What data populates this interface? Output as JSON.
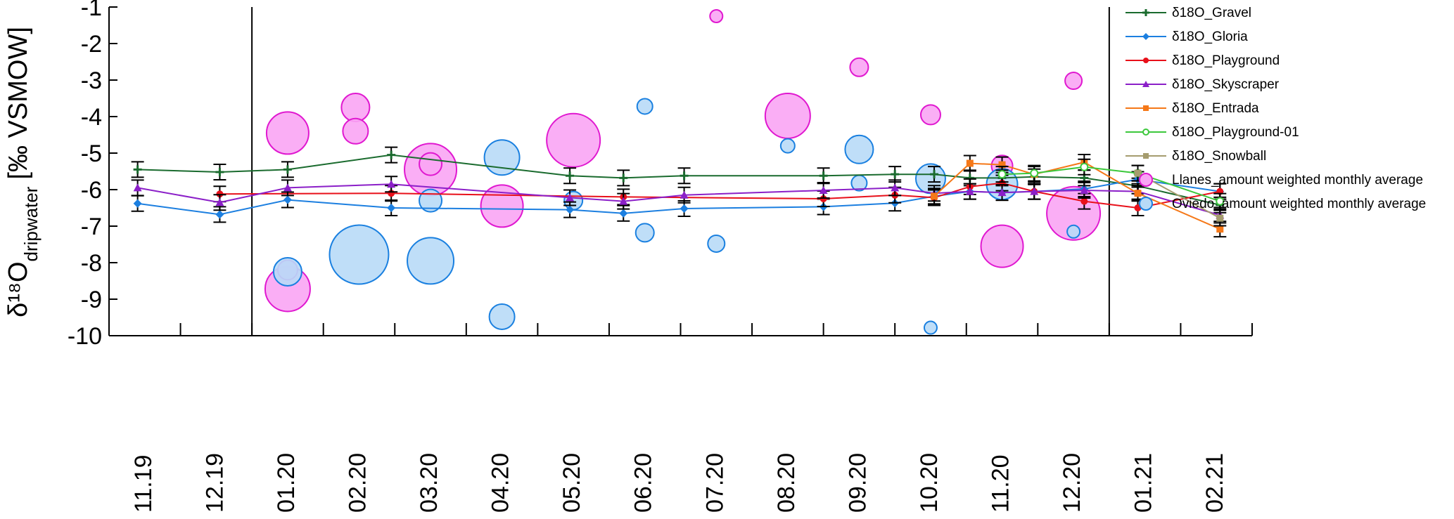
{
  "chart_data": {
    "type": "line",
    "ylabel": {
      "main": "δ¹⁸O",
      "subscript": "dripwater",
      "unit": "[‰ VSMOW]"
    },
    "ylim": [
      -10,
      -1
    ],
    "yticks": [
      -1,
      -2,
      -3,
      -4,
      -5,
      -6,
      -7,
      -8,
      -9,
      -10
    ],
    "xlim": [
      0,
      16
    ],
    "xticks": [
      {
        "pos": 0.5,
        "label": "11.19"
      },
      {
        "pos": 1.5,
        "label": "12.19"
      },
      {
        "pos": 2.5,
        "label": "01.20"
      },
      {
        "pos": 3.5,
        "label": "02.20"
      },
      {
        "pos": 4.5,
        "label": "03.20"
      },
      {
        "pos": 5.5,
        "label": "04.20"
      },
      {
        "pos": 6.5,
        "label": "05.20"
      },
      {
        "pos": 7.5,
        "label": "06.20"
      },
      {
        "pos": 8.5,
        "label": "07.20"
      },
      {
        "pos": 9.5,
        "label": "08.20"
      },
      {
        "pos": 10.5,
        "label": "09.20"
      },
      {
        "pos": 11.5,
        "label": "10.20"
      },
      {
        "pos": 12.5,
        "label": "11.20"
      },
      {
        "pos": 13.5,
        "label": "12.20"
      },
      {
        "pos": 14.5,
        "label": "01.21"
      },
      {
        "pos": 15.5,
        "label": "02.21"
      }
    ],
    "vlines": [
      2.0,
      14.0
    ],
    "legend_position": "right",
    "series": [
      {
        "name": "δ18O_Gravel",
        "color": "#1a6b2e",
        "marker": "plus",
        "points": [
          [
            0.4,
            -5.45
          ],
          [
            1.55,
            -5.52
          ],
          [
            2.5,
            -5.45
          ],
          [
            3.95,
            -5.05
          ],
          [
            6.45,
            -5.62
          ],
          [
            7.2,
            -5.68
          ],
          [
            8.05,
            -5.62
          ],
          [
            10.0,
            -5.62
          ],
          [
            11.0,
            -5.58
          ],
          [
            11.55,
            -5.58
          ],
          [
            12.05,
            -5.68
          ],
          [
            12.5,
            -5.68
          ],
          [
            12.95,
            -5.65
          ],
          [
            13.65,
            -5.68
          ],
          [
            14.4,
            -5.9
          ],
          [
            15.55,
            -6.42
          ]
        ]
      },
      {
        "name": "δ18O_Gloria",
        "color": "#1c7fe0",
        "marker": "diamond",
        "points": [
          [
            0.4,
            -6.38
          ],
          [
            1.55,
            -6.68
          ],
          [
            2.5,
            -6.28
          ],
          [
            3.95,
            -6.5
          ],
          [
            6.45,
            -6.55
          ],
          [
            7.2,
            -6.65
          ],
          [
            8.05,
            -6.52
          ],
          [
            10.0,
            -6.47
          ],
          [
            11.0,
            -6.37
          ],
          [
            11.55,
            -6.18
          ],
          [
            12.05,
            -6.05
          ],
          [
            12.5,
            -6.08
          ],
          [
            12.95,
            -6.05
          ],
          [
            13.65,
            -5.98
          ],
          [
            14.4,
            -5.72
          ],
          [
            15.55,
            -6.05
          ]
        ]
      },
      {
        "name": "δ18O_Playground",
        "color": "#e8101a",
        "marker": "circle",
        "points": [
          [
            1.55,
            -6.12
          ],
          [
            3.95,
            -6.1
          ],
          [
            7.2,
            -6.2
          ],
          [
            10.0,
            -6.25
          ],
          [
            11.0,
            -6.15
          ],
          [
            11.55,
            -6.22
          ],
          [
            12.05,
            -5.92
          ],
          [
            12.5,
            -5.82
          ],
          [
            12.95,
            -6.05
          ],
          [
            13.65,
            -6.32
          ],
          [
            14.4,
            -6.5
          ],
          [
            15.55,
            -6.05
          ]
        ]
      },
      {
        "name": "δ18O_Skyscraper",
        "color": "#8b1fc8",
        "marker": "triangle",
        "points": [
          [
            0.4,
            -5.95
          ],
          [
            1.55,
            -6.35
          ],
          [
            2.5,
            -5.95
          ],
          [
            3.95,
            -5.85
          ],
          [
            6.45,
            -6.22
          ],
          [
            7.2,
            -6.32
          ],
          [
            8.05,
            -6.15
          ],
          [
            10.0,
            -6.02
          ],
          [
            11.0,
            -5.95
          ],
          [
            11.55,
            -6.1
          ],
          [
            12.05,
            -6.05
          ],
          [
            12.5,
            -6.08
          ],
          [
            12.95,
            -6.05
          ],
          [
            13.65,
            -6.02
          ],
          [
            14.4,
            -6.05
          ],
          [
            15.55,
            -6.7
          ]
        ]
      },
      {
        "name": "δ18O_Entrada",
        "color": "#f57818",
        "marker": "square",
        "points": [
          [
            11.55,
            -6.18
          ],
          [
            12.05,
            -5.28
          ],
          [
            12.5,
            -5.32
          ],
          [
            12.95,
            -5.58
          ],
          [
            13.65,
            -5.25
          ],
          [
            14.4,
            -6.1
          ],
          [
            15.55,
            -7.08
          ]
        ]
      },
      {
        "name": "δ18O_Playground-01",
        "color": "#3cc83c",
        "marker": "open-circle",
        "points": [
          [
            12.5,
            -5.58
          ],
          [
            12.95,
            -5.55
          ],
          [
            13.65,
            -5.38
          ],
          [
            14.4,
            -5.55
          ],
          [
            15.55,
            -6.32
          ]
        ]
      },
      {
        "name": "δ18O_Snowball",
        "color": "#a59c6e",
        "marker": "square",
        "points": [
          [
            14.4,
            -5.55
          ],
          [
            15.55,
            -6.78
          ]
        ]
      }
    ],
    "bubble_series": [
      {
        "name": "Llanes_amount weighted monthly average",
        "fill": "#f9a5f4",
        "stroke": "#e018d0",
        "points": [
          [
            2.5,
            -4.45,
            30
          ],
          [
            3.45,
            -3.75,
            20
          ],
          [
            3.45,
            -4.4,
            18
          ],
          [
            4.5,
            -5.45,
            37
          ],
          [
            4.5,
            -5.3,
            16
          ],
          [
            5.5,
            -6.45,
            30
          ],
          [
            6.5,
            -4.65,
            38
          ],
          [
            8.5,
            -1.25,
            9
          ],
          [
            9.5,
            -3.98,
            32
          ],
          [
            10.5,
            -2.65,
            13
          ],
          [
            11.5,
            -3.95,
            14
          ],
          [
            12.5,
            -5.35,
            15
          ],
          [
            12.5,
            -7.55,
            30
          ],
          [
            13.5,
            -3.02,
            12
          ],
          [
            13.5,
            -6.65,
            38
          ],
          [
            2.5,
            -8.72,
            32
          ],
          [
            2.5,
            -8.2,
            14
          ]
        ]
      },
      {
        "name": "Oviedo_amount weighted monthly average",
        "fill": "#b8daf7",
        "stroke": "#1a80e0",
        "points": [
          [
            2.5,
            -8.25,
            20
          ],
          [
            3.5,
            -7.78,
            42
          ],
          [
            4.5,
            -7.95,
            33
          ],
          [
            4.5,
            -6.3,
            16
          ],
          [
            5.5,
            -5.12,
            25
          ],
          [
            5.5,
            -9.48,
            18
          ],
          [
            6.5,
            -6.3,
            13
          ],
          [
            7.5,
            -3.72,
            11
          ],
          [
            7.5,
            -7.18,
            13
          ],
          [
            8.5,
            -7.48,
            12
          ],
          [
            9.5,
            -4.8,
            10
          ],
          [
            10.5,
            -4.9,
            20
          ],
          [
            10.5,
            -5.82,
            11
          ],
          [
            11.5,
            -5.7,
            21
          ],
          [
            11.5,
            -9.78,
            9
          ],
          [
            12.5,
            -5.85,
            22
          ],
          [
            13.5,
            -7.15,
            9
          ]
        ]
      }
    ]
  }
}
